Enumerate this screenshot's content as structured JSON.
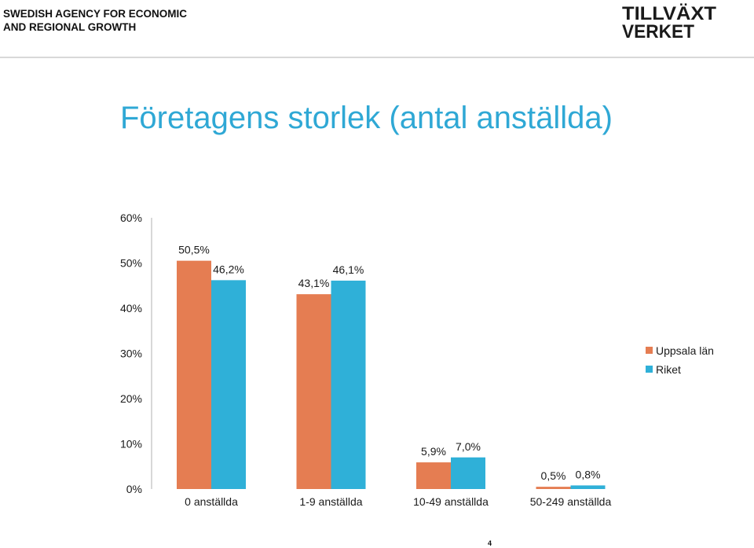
{
  "header": {
    "agency_line1": "SWEDISH AGENCY FOR ECONOMIC",
    "agency_line2": "AND REGIONAL GROWTH",
    "logo_line1": "TILLVÄXT",
    "logo_line2": "VERKET"
  },
  "colors": {
    "title": "#2fa8d5",
    "series_uppsala": "#e57d52",
    "series_riket": "#2fb0d8"
  },
  "page_number": "4",
  "chart_data": {
    "type": "bar",
    "title": "Företagens storlek (antal anställda)",
    "categories": [
      "0 anställda",
      "1-9 anställda",
      "10-49 anställda",
      "50-249 anställda"
    ],
    "series": [
      {
        "name": "Uppsala län",
        "values": [
          50.5,
          43.1,
          5.9,
          0.5
        ],
        "labels": [
          "50,5%",
          "43,1%",
          "5,9%",
          "0,5%"
        ]
      },
      {
        "name": "Riket",
        "values": [
          46.2,
          46.1,
          7.0,
          0.8
        ],
        "labels": [
          "46,2%",
          "46,1%",
          "7,0%",
          "0,8%"
        ]
      }
    ],
    "ylim": [
      0,
      60
    ],
    "yticks": [
      "0%",
      "10%",
      "20%",
      "30%",
      "40%",
      "50%",
      "60%"
    ],
    "xlabel": "",
    "ylabel": "",
    "grid": false,
    "legend_position": "right"
  }
}
